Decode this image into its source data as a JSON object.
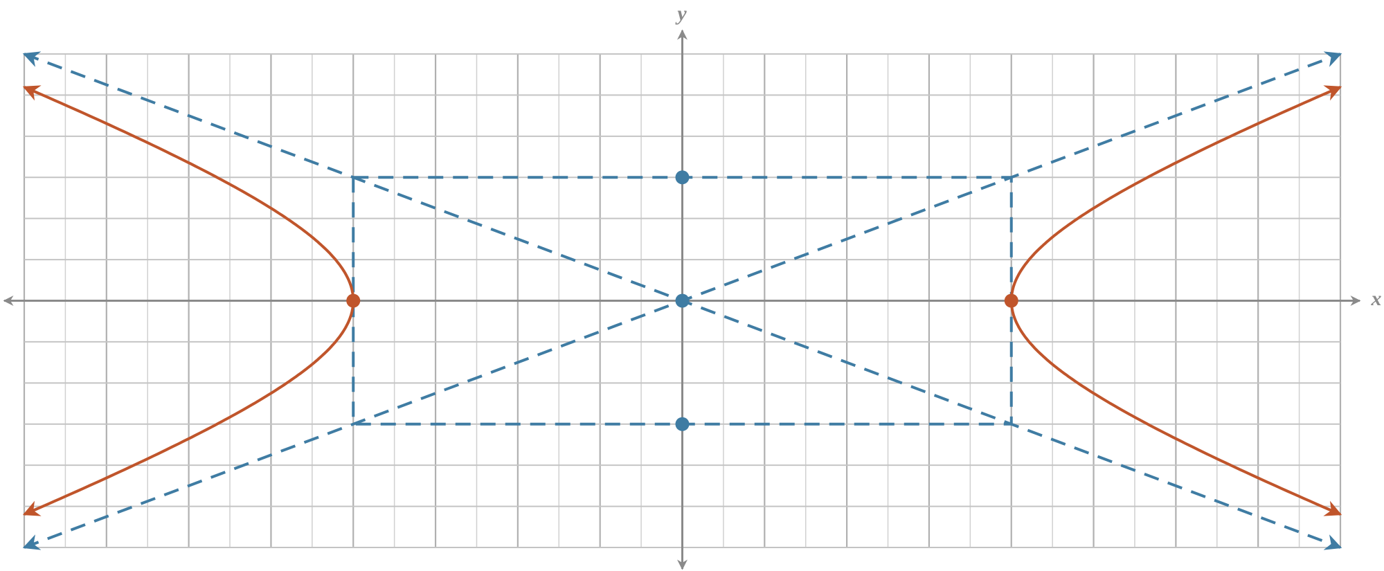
{
  "chart_data": {
    "type": "hyperbola",
    "x_label": "x",
    "y_label": "y",
    "xlim": [
      -16,
      16
    ],
    "ylim": [
      -6,
      6
    ],
    "xticks": [
      -16,
      -15,
      -14,
      -13,
      -12,
      -11,
      -10,
      -9,
      -8,
      -7,
      -6,
      -5,
      -4,
      -3,
      -2,
      -1,
      0,
      1,
      2,
      3,
      4,
      5,
      6,
      7,
      8,
      9,
      10,
      11,
      12,
      13,
      14,
      15,
      16
    ],
    "yticks": [
      -6,
      -5,
      -4,
      -3,
      -2,
      -1,
      0,
      1,
      2,
      3,
      4,
      5,
      6
    ],
    "grid": true,
    "hyperbola": {
      "a": 8,
      "b": 3,
      "color": "#c0552b"
    },
    "guide_color": "#3f7ca3",
    "points": [
      {
        "x": -8,
        "y": 0,
        "color": "#c0552b"
      },
      {
        "x": 8,
        "y": 0,
        "color": "#c0552b"
      },
      {
        "x": 0,
        "y": 0,
        "color": "#3f7ca3"
      },
      {
        "x": 0,
        "y": 3,
        "color": "#3f7ca3"
      },
      {
        "x": 0,
        "y": -3,
        "color": "#3f7ca3"
      }
    ]
  }
}
